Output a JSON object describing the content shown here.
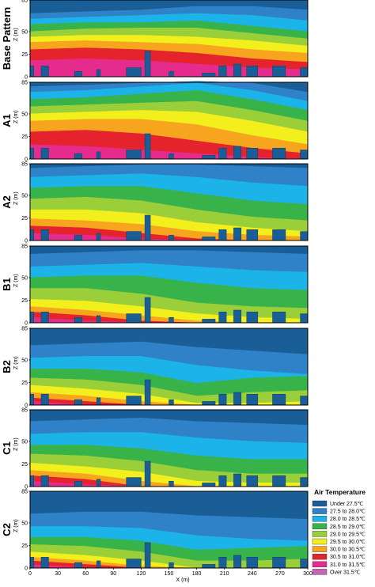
{
  "chart_data": {
    "type": "heatmap",
    "xlabel": "X (m)",
    "ylabel": "Z (m)",
    "xlim": [
      0,
      300
    ],
    "ylim": [
      0,
      85
    ],
    "x_ticks": [
      "0",
      "30",
      "60",
      "90",
      "120",
      "150",
      "180",
      "210",
      "240",
      "270",
      "300"
    ],
    "y_ticks": [
      "0",
      "25",
      "50",
      "85"
    ],
    "legend": {
      "title": "Air Temperature",
      "placement": "bottom-right",
      "classes": [
        {
          "label": "Under 27.5℃",
          "color": "#1a5e97"
        },
        {
          "label": "27.5 to 28.0℃",
          "color": "#2f82c8"
        },
        {
          "label": "28.0 to 28.5℃",
          "color": "#1cb3e8"
        },
        {
          "label": "28.5 to 29.0℃",
          "color": "#38b34a"
        },
        {
          "label": "29.0 to 29.5℃",
          "color": "#9bcf3a"
        },
        {
          "label": "29.5 to 30.0℃",
          "color": "#f2ef1c"
        },
        {
          "label": "30.0 to 30.5℃",
          "color": "#f7a41e"
        },
        {
          "label": "30.5 to 31.0℃",
          "color": "#e5232c"
        },
        {
          "label": "31.0 to 31.5℃",
          "color": "#e52b8c"
        },
        {
          "label": "Over 31.5℃",
          "color": "#c765b6"
        }
      ]
    },
    "panels": [
      {
        "name": "Base Pattern",
        "bounds_class_top_down": [
          {
            "x": [
              0,
              60,
              120,
              180,
              240,
              300
            ],
            "z": [
              [
                85,
                85,
                85,
                85,
                85,
                85
              ],
              [
                70,
                72,
                74,
                78,
                78,
                74
              ],
              [
                64,
                66,
                68,
                70,
                68,
                62
              ],
              [
                58,
                60,
                60,
                62,
                56,
                50
              ],
              [
                50,
                53,
                54,
                54,
                48,
                42
              ],
              [
                44,
                46,
                46,
                44,
                40,
                34
              ],
              [
                38,
                40,
                38,
                36,
                30,
                26
              ],
              [
                30,
                32,
                30,
                26,
                20,
                16
              ],
              [
                18,
                20,
                18,
                14,
                10,
                8
              ]
            ]
          }
        ]
      },
      {
        "name": "A1",
        "bounds_class_top_down": [
          {
            "x": [
              0,
              60,
              120,
              180,
              240,
              300
            ],
            "z": [
              [
                85,
                85,
                85,
                85,
                85,
                85
              ],
              [
                80,
                82,
                84,
                86,
                84,
                74
              ],
              [
                74,
                76,
                80,
                84,
                76,
                64
              ],
              [
                66,
                68,
                72,
                76,
                66,
                54
              ],
              [
                58,
                60,
                62,
                64,
                54,
                42
              ],
              [
                50,
                52,
                54,
                52,
                42,
                30
              ],
              [
                42,
                44,
                44,
                38,
                26,
                16
              ],
              [
                30,
                32,
                28,
                20,
                12,
                6
              ],
              [
                16,
                14,
                10,
                6,
                2,
                0
              ]
            ]
          }
        ]
      },
      {
        "name": "A2",
        "bounds_class_top_down": [
          {
            "x": [
              0,
              60,
              120,
              180,
              240,
              300
            ],
            "z": [
              [
                85,
                85,
                85,
                85,
                85,
                85
              ],
              [
                80,
                82,
                84,
                84,
                82,
                80
              ],
              [
                70,
                72,
                74,
                70,
                64,
                60
              ],
              [
                58,
                60,
                60,
                52,
                44,
                40
              ],
              [
                46,
                48,
                44,
                34,
                26,
                22
              ],
              [
                34,
                34,
                30,
                20,
                14,
                10
              ],
              [
                24,
                22,
                18,
                10,
                6,
                4
              ],
              [
                16,
                14,
                8,
                2,
                0,
                0
              ],
              [
                8,
                6,
                2,
                0,
                0,
                0
              ]
            ]
          }
        ]
      },
      {
        "name": "B1",
        "bounds_class_top_down": [
          {
            "x": [
              0,
              60,
              120,
              180,
              240,
              300
            ],
            "z": [
              [
                85,
                85,
                85,
                85,
                85,
                85
              ],
              [
                76,
                78,
                80,
                80,
                78,
                76
              ],
              [
                62,
                64,
                66,
                62,
                58,
                56
              ],
              [
                50,
                52,
                52,
                44,
                38,
                36
              ],
              [
                38,
                38,
                32,
                22,
                18,
                16
              ],
              [
                26,
                24,
                18,
                10,
                6,
                4
              ],
              [
                18,
                14,
                8,
                2,
                0,
                0
              ],
              [
                12,
                8,
                2,
                0,
                0,
                0
              ],
              [
                6,
                2,
                0,
                0,
                0,
                0
              ]
            ]
          }
        ]
      },
      {
        "name": "B2",
        "bounds_class_top_down": [
          {
            "x": [
              0,
              60,
              120,
              180,
              240,
              300
            ],
            "z": [
              [
                85,
                85,
                85,
                85,
                85,
                85
              ],
              [
                66,
                68,
                70,
                64,
                60,
                56
              ],
              [
                52,
                54,
                54,
                44,
                38,
                34
              ],
              [
                40,
                40,
                36,
                24,
                30,
                32
              ],
              [
                30,
                28,
                22,
                10,
                14,
                16
              ],
              [
                22,
                18,
                12,
                2,
                2,
                4
              ],
              [
                14,
                10,
                4,
                0,
                0,
                0
              ],
              [
                8,
                4,
                0,
                0,
                0,
                0
              ],
              [
                4,
                0,
                0,
                0,
                0,
                0
              ]
            ]
          }
        ]
      },
      {
        "name": "C1",
        "bounds_class_top_down": [
          {
            "x": [
              0,
              60,
              120,
              180,
              240,
              300
            ],
            "z": [
              [
                85,
                85,
                85,
                85,
                85,
                85
              ],
              [
                72,
                74,
                76,
                72,
                70,
                68
              ],
              [
                58,
                60,
                60,
                54,
                50,
                48
              ],
              [
                46,
                46,
                42,
                34,
                30,
                30
              ],
              [
                36,
                34,
                28,
                18,
                14,
                14
              ],
              [
                26,
                22,
                16,
                6,
                4,
                4
              ],
              [
                18,
                14,
                6,
                0,
                0,
                0
              ],
              [
                12,
                8,
                0,
                0,
                0,
                0
              ],
              [
                6,
                2,
                0,
                0,
                0,
                0
              ]
            ]
          }
        ]
      },
      {
        "name": "C2",
        "bounds_class_top_down": [
          {
            "x": [
              0,
              60,
              120,
              180,
              240,
              300
            ],
            "z": [
              [
                85,
                85,
                85,
                85,
                85,
                85
              ],
              [
                60,
                62,
                62,
                58,
                56,
                54
              ],
              [
                46,
                46,
                44,
                36,
                32,
                30
              ],
              [
                34,
                34,
                30,
                20,
                22,
                24
              ],
              [
                26,
                24,
                18,
                8,
                8,
                10
              ],
              [
                18,
                14,
                8,
                0,
                0,
                0
              ],
              [
                12,
                8,
                2,
                0,
                0,
                0
              ],
              [
                8,
                4,
                0,
                0,
                0,
                0
              ],
              [
                4,
                0,
                0,
                0,
                0,
                0
              ]
            ]
          }
        ]
      }
    ],
    "buildings_x_height": [
      [
        0,
        4,
        12
      ],
      [
        12,
        20,
        12
      ],
      [
        48,
        56,
        6
      ],
      [
        72,
        76,
        8
      ],
      [
        104,
        120,
        10
      ],
      [
        124,
        130,
        28
      ],
      [
        150,
        155,
        6
      ],
      [
        186,
        200,
        4
      ],
      [
        204,
        212,
        12
      ],
      [
        220,
        228,
        14
      ],
      [
        234,
        246,
        12
      ],
      [
        262,
        276,
        12
      ],
      [
        292,
        300,
        10
      ]
    ]
  },
  "colors": {
    "frame": "#000000",
    "background": "#ffffff"
  }
}
